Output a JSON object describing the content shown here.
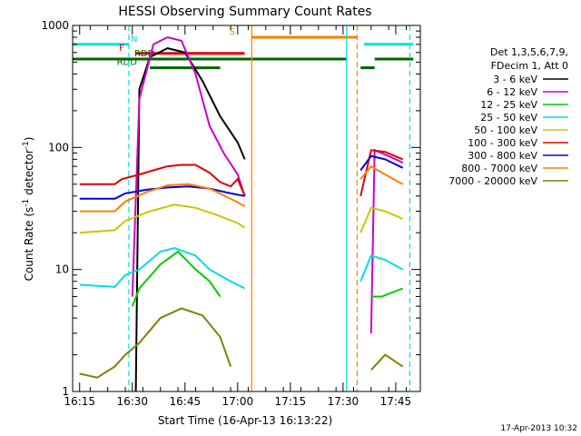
{
  "chart_data": {
    "type": "line",
    "title": "HESSI Observing Summary Count Rates",
    "xlabel": "Start Time (16-Apr-13 16:13:22)",
    "ylabel_main": "Count Rate (s",
    "ylabel_sup": "-1",
    "ylabel_mid": " detector",
    "ylabel_sup2": "-1",
    "ylabel_end": ")",
    "y_scale": "log",
    "ylim": [
      1,
      1000
    ],
    "xlim": [
      "16:13",
      "17:52"
    ],
    "xticks": [
      "16:15",
      "16:30",
      "16:45",
      "17:00",
      "17:15",
      "17:30",
      "17:45"
    ],
    "yticks": [
      "1",
      "10",
      "100",
      "1000"
    ],
    "legend_header": [
      "Det 1,3,5,6,7,9,",
      "FDecim 1, Att 0"
    ],
    "legend_position": "right",
    "series": [
      {
        "name": "3 - 6 keV",
        "color": "#000000",
        "points": [
          [
            "16:31",
            1
          ],
          [
            "16:32",
            300
          ],
          [
            "16:35",
            550
          ],
          [
            "16:40",
            650
          ],
          [
            "16:45",
            600
          ],
          [
            "16:50",
            350
          ],
          [
            "16:55",
            180
          ],
          [
            "17:00",
            110
          ],
          [
            "17:02",
            80
          ]
        ]
      },
      {
        "name": "6 - 12 keV",
        "color": "#cc00cc",
        "points": [
          [
            "16:30",
            6
          ],
          [
            "16:32",
            250
          ],
          [
            "16:36",
            700
          ],
          [
            "16:40",
            800
          ],
          [
            "16:44",
            750
          ],
          [
            "16:48",
            400
          ],
          [
            "16:52",
            150
          ],
          [
            "16:56",
            90
          ],
          [
            "17:00",
            60
          ],
          [
            "17:02",
            40
          ],
          [
            "17:38",
            3
          ],
          [
            "17:39",
            95
          ],
          [
            "17:43",
            85
          ],
          [
            "17:47",
            75
          ]
        ]
      },
      {
        "name": "12 - 25 keV",
        "color": "#00cc00",
        "points": [
          [
            "16:30",
            5
          ],
          [
            "16:32",
            7
          ],
          [
            "16:38",
            11
          ],
          [
            "16:43",
            14
          ],
          [
            "16:48",
            10
          ],
          [
            "16:52",
            8
          ],
          [
            "16:55",
            6
          ],
          [
            "17:38",
            6
          ],
          [
            "17:41",
            6
          ],
          [
            "17:47",
            7
          ]
        ]
      },
      {
        "name": "25 - 50 keV",
        "color": "#00e0e0",
        "points": [
          [
            "16:15",
            7.5
          ],
          [
            "16:25",
            7.2
          ],
          [
            "16:28",
            9
          ],
          [
            "16:32",
            10
          ],
          [
            "16:38",
            14
          ],
          [
            "16:42",
            15
          ],
          [
            "16:48",
            13
          ],
          [
            "16:52",
            10
          ],
          [
            "16:58",
            8
          ],
          [
            "17:02",
            7
          ],
          [
            "17:35",
            8
          ],
          [
            "17:38",
            13
          ],
          [
            "17:42",
            12
          ],
          [
            "17:47",
            10
          ]
        ]
      },
      {
        "name": "50 - 100 keV",
        "color": "#c8c800",
        "points": [
          [
            "16:15",
            20
          ],
          [
            "16:25",
            21
          ],
          [
            "16:28",
            25
          ],
          [
            "16:35",
            30
          ],
          [
            "16:42",
            34
          ],
          [
            "16:48",
            32
          ],
          [
            "16:54",
            28
          ],
          [
            "17:00",
            24
          ],
          [
            "17:02",
            22
          ],
          [
            "17:35",
            20
          ],
          [
            "17:38",
            32
          ],
          [
            "17:42",
            30
          ],
          [
            "17:47",
            26
          ]
        ]
      },
      {
        "name": "100 - 300 keV",
        "color": "#e00000",
        "points": [
          [
            "16:15",
            50
          ],
          [
            "16:25",
            50
          ],
          [
            "16:27",
            55
          ],
          [
            "16:32",
            60
          ],
          [
            "16:36",
            65
          ],
          [
            "16:40",
            70
          ],
          [
            "16:44",
            72
          ],
          [
            "16:48",
            72
          ],
          [
            "16:52",
            62
          ],
          [
            "16:55",
            52
          ],
          [
            "16:58",
            48
          ],
          [
            "17:00",
            55
          ],
          [
            "17:02",
            40
          ],
          [
            "17:35",
            40
          ],
          [
            "17:38",
            95
          ],
          [
            "17:42",
            92
          ],
          [
            "17:47",
            80
          ]
        ]
      },
      {
        "name": "300 - 800 keV",
        "color": "#0000dd",
        "points": [
          [
            "16:15",
            38
          ],
          [
            "16:25",
            38
          ],
          [
            "16:28",
            42
          ],
          [
            "16:34",
            45
          ],
          [
            "16:40",
            47
          ],
          [
            "16:46",
            48
          ],
          [
            "16:52",
            46
          ],
          [
            "16:58",
            42
          ],
          [
            "17:02",
            40
          ],
          [
            "17:35",
            65
          ],
          [
            "17:38",
            85
          ],
          [
            "17:42",
            80
          ],
          [
            "17:47",
            68
          ]
        ]
      },
      {
        "name": "800 - 7000 keV",
        "color": "#ff8000",
        "points": [
          [
            "16:15",
            30
          ],
          [
            "16:25",
            30
          ],
          [
            "16:28",
            36
          ],
          [
            "16:34",
            43
          ],
          [
            "16:40",
            49
          ],
          [
            "16:46",
            50
          ],
          [
            "16:52",
            46
          ],
          [
            "16:58",
            38
          ],
          [
            "17:02",
            33
          ],
          [
            "17:35",
            55
          ],
          [
            "17:38",
            70
          ],
          [
            "17:42",
            60
          ],
          [
            "17:47",
            50
          ]
        ]
      },
      {
        "name": "7000 - 20000 keV",
        "color": "#808000",
        "points": [
          [
            "16:15",
            1.4
          ],
          [
            "16:20",
            1.3
          ],
          [
            "16:25",
            1.6
          ],
          [
            "16:28",
            2
          ],
          [
            "16:32",
            2.5
          ],
          [
            "16:38",
            4
          ],
          [
            "16:44",
            4.8
          ],
          [
            "16:50",
            4.2
          ],
          [
            "16:55",
            2.8
          ],
          [
            "16:58",
            1.6
          ],
          [
            "17:38",
            1.5
          ],
          [
            "17:42",
            2
          ],
          [
            "17:47",
            1.6
          ]
        ]
      }
    ],
    "flag_bars": [
      {
        "label": "",
        "color": "#00e0e0",
        "y": 700,
        "segments": [
          [
            "16:13",
            "16:29"
          ],
          [
            "17:36",
            "17:50"
          ]
        ]
      },
      {
        "label": "N",
        "color": "#00e0e0",
        "y": 700,
        "segments": []
      },
      {
        "label": "S",
        "color": "#ff8000",
        "y": 800,
        "segments": [
          [
            "17:04",
            "17:34"
          ]
        ]
      },
      {
        "label": "F",
        "color": "#e00000",
        "y": 590,
        "segments": [
          [
            "16:31",
            "17:02"
          ]
        ]
      },
      {
        "label": "RDD",
        "color": "#006400",
        "y": 530,
        "segments": [
          [
            "16:13",
            "17:31"
          ],
          [
            "17:39",
            "17:50"
          ]
        ]
      },
      {
        "label": "RDD",
        "color": "#006400",
        "y": 450,
        "segments": [
          [
            "16:35",
            "16:55"
          ],
          [
            "17:35",
            "17:39"
          ]
        ]
      }
    ],
    "vlines": [
      {
        "color": "#00e0e0",
        "x": "16:29",
        "style": "dashed"
      },
      {
        "color": "#ff8000",
        "x": "17:04",
        "style": "solid"
      },
      {
        "color": "#00e0e0",
        "x": "17:31",
        "style": "solid"
      },
      {
        "color": "#ff8000",
        "x": "17:34",
        "style": "dashed"
      },
      {
        "color": "#00e0e0",
        "x": "17:49",
        "style": "dashed"
      }
    ],
    "grid": false
  },
  "footer": {
    "timestamp": "17-Apr-2013 10:32"
  }
}
